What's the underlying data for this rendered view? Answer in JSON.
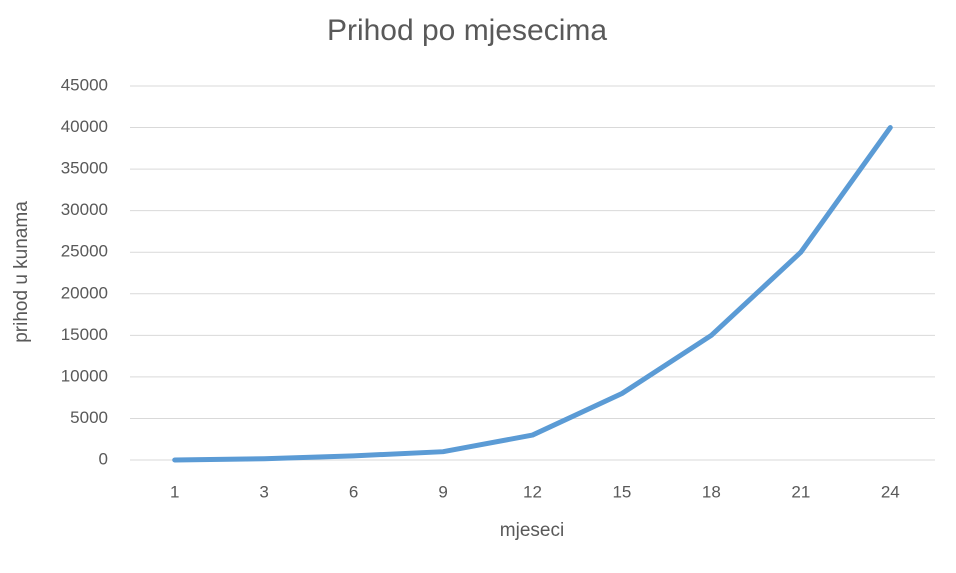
{
  "chart_data": {
    "type": "line",
    "title": "Prihod po mjesecima",
    "x_label": "mjeseci",
    "y_label": "prihod u kunama",
    "categories": [
      "1",
      "3",
      "6",
      "9",
      "12",
      "15",
      "18",
      "21",
      "24"
    ],
    "values": [
      0,
      150,
      500,
      1000,
      3000,
      8000,
      15000,
      25000,
      40000
    ],
    "color": "#5b9bd5",
    "ylim": [
      0,
      45000
    ],
    "yticks": [
      0,
      5000,
      10000,
      15000,
      20000,
      25000,
      30000,
      35000,
      40000,
      45000
    ],
    "grid": true
  }
}
